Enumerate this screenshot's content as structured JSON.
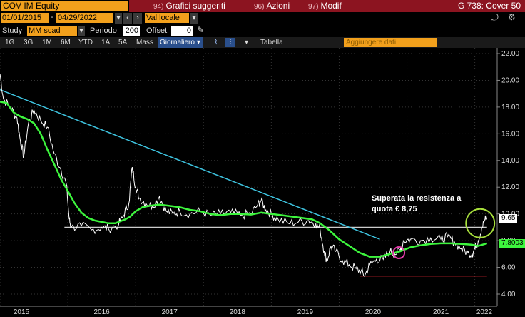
{
  "header": {
    "ticker": "COV IM Equity",
    "menus": [
      {
        "num": "94)",
        "label": "Grafici suggeriti"
      },
      {
        "num": "96)",
        "label": "Azioni"
      },
      {
        "num": "97)",
        "label": "Modif"
      }
    ],
    "right_title": "G 738: Cover 50"
  },
  "daterange": {
    "start": "01/01/2015",
    "end": "04/29/2022",
    "currency": "Val locale"
  },
  "study": {
    "label": "Study",
    "value": "MM scad",
    "period_label": "Periodo",
    "period_value": "200",
    "offset_label": "Offset",
    "offset_value": "0"
  },
  "periods": {
    "items": [
      "1G",
      "3G",
      "1M",
      "6M",
      "YTD",
      "1A",
      "5A",
      "Mass"
    ],
    "frequency": "Giornaliero",
    "table": "Tabella",
    "add_data_placeholder": "Aggiungere dati"
  },
  "chart_data": {
    "type": "line",
    "x_ticks": [
      "2015",
      "2016",
      "2017",
      "2018",
      "2019",
      "2020",
      "2021",
      "2022"
    ],
    "y_ticks": [
      "22.00",
      "20.00",
      "18.00",
      "16.00",
      "14.00",
      "12.00",
      "10.00",
      "8.00",
      "6.00",
      "4.00"
    ],
    "ylim": [
      4,
      22
    ],
    "series": [
      {
        "name": "",
        "color": "#ffffff",
        "points": [
          [
            2015.0,
            20.5
          ],
          [
            2015.05,
            18.6
          ],
          [
            2015.15,
            18.0
          ],
          [
            2015.25,
            17.2
          ],
          [
            2015.3,
            15.5
          ],
          [
            2015.35,
            14.3
          ],
          [
            2015.42,
            16.8
          ],
          [
            2015.5,
            17.8
          ],
          [
            2015.6,
            17.0
          ],
          [
            2015.7,
            16.5
          ],
          [
            2015.8,
            14.5
          ],
          [
            2015.9,
            13.3
          ],
          [
            2015.98,
            12.2
          ],
          [
            2016.02,
            9.6
          ],
          [
            2016.05,
            9.0
          ],
          [
            2016.2,
            9.1
          ],
          [
            2016.35,
            8.8
          ],
          [
            2016.5,
            9.0
          ],
          [
            2016.6,
            8.9
          ],
          [
            2016.75,
            9.2
          ],
          [
            2016.82,
            9.9
          ],
          [
            2016.9,
            10.8
          ],
          [
            2016.95,
            13.5
          ],
          [
            2017.0,
            12.0
          ],
          [
            2017.05,
            11.2
          ],
          [
            2017.15,
            10.8
          ],
          [
            2017.25,
            10.6
          ],
          [
            2017.35,
            11.3
          ],
          [
            2017.45,
            10.2
          ],
          [
            2017.55,
            10.0
          ],
          [
            2017.65,
            10.2
          ],
          [
            2017.8,
            10.0
          ],
          [
            2017.95,
            10.2
          ],
          [
            2018.1,
            9.9
          ],
          [
            2018.25,
            10.0
          ],
          [
            2018.4,
            10.1
          ],
          [
            2018.55,
            9.9
          ],
          [
            2018.7,
            10.0
          ],
          [
            2018.8,
            10.7
          ],
          [
            2018.85,
            11.0
          ],
          [
            2018.92,
            10.3
          ],
          [
            2019.0,
            10.0
          ],
          [
            2019.1,
            9.6
          ],
          [
            2019.25,
            9.3
          ],
          [
            2019.4,
            9.4
          ],
          [
            2019.55,
            9.5
          ],
          [
            2019.65,
            9.3
          ],
          [
            2019.72,
            8.8
          ],
          [
            2019.78,
            7.2
          ],
          [
            2019.82,
            6.5
          ],
          [
            2019.88,
            7.6
          ],
          [
            2019.95,
            7.2
          ],
          [
            2020.05,
            6.5
          ],
          [
            2020.15,
            6.2
          ],
          [
            2020.25,
            5.9
          ],
          [
            2020.32,
            5.7
          ],
          [
            2020.38,
            5.4
          ],
          [
            2020.45,
            6.2
          ],
          [
            2020.55,
            6.6
          ],
          [
            2020.65,
            6.6
          ],
          [
            2020.75,
            7.2
          ],
          [
            2020.82,
            7.0
          ],
          [
            2020.9,
            7.3
          ],
          [
            2020.95,
            8.0
          ],
          [
            2021.05,
            8.1
          ],
          [
            2021.2,
            8.0
          ],
          [
            2021.35,
            8.2
          ],
          [
            2021.5,
            8.1
          ],
          [
            2021.6,
            8.3
          ],
          [
            2021.7,
            7.9
          ],
          [
            2021.8,
            7.4
          ],
          [
            2021.9,
            7.1
          ],
          [
            2021.96,
            7.0
          ],
          [
            2022.0,
            7.4
          ],
          [
            2022.05,
            8.0
          ],
          [
            2022.1,
            8.9
          ],
          [
            2022.15,
            9.6
          ],
          [
            2022.18,
            9.65
          ]
        ]
      },
      {
        "name": "",
        "color": "#3df53d",
        "points": [
          [
            2015.0,
            18.4
          ],
          [
            2015.1,
            18.3
          ],
          [
            2015.2,
            17.6
          ],
          [
            2015.3,
            17.3
          ],
          [
            2015.4,
            17.1
          ],
          [
            2015.5,
            16.8
          ],
          [
            2015.6,
            16.0
          ],
          [
            2015.7,
            14.8
          ],
          [
            2015.8,
            13.7
          ],
          [
            2015.9,
            12.6
          ],
          [
            2016.0,
            11.7
          ],
          [
            2016.1,
            10.8
          ],
          [
            2016.2,
            10.1
          ],
          [
            2016.3,
            9.7
          ],
          [
            2016.4,
            9.5
          ],
          [
            2016.5,
            9.4
          ],
          [
            2016.6,
            9.3
          ],
          [
            2016.7,
            9.3
          ],
          [
            2016.75,
            9.4
          ],
          [
            2016.85,
            9.6
          ],
          [
            2016.92,
            9.8
          ],
          [
            2017.0,
            10.2
          ],
          [
            2017.1,
            10.5
          ],
          [
            2017.2,
            10.6
          ],
          [
            2017.35,
            10.7
          ],
          [
            2017.5,
            10.6
          ],
          [
            2017.65,
            10.5
          ],
          [
            2017.8,
            10.3
          ],
          [
            2017.95,
            10.2
          ],
          [
            2018.1,
            10.0
          ],
          [
            2018.25,
            9.9
          ],
          [
            2018.4,
            10.0
          ],
          [
            2018.55,
            10.0
          ],
          [
            2018.7,
            9.95
          ],
          [
            2018.85,
            10.1
          ],
          [
            2019.0,
            10.0
          ],
          [
            2019.15,
            9.9
          ],
          [
            2019.3,
            9.8
          ],
          [
            2019.45,
            9.7
          ],
          [
            2019.6,
            9.6
          ],
          [
            2019.72,
            9.3
          ],
          [
            2019.85,
            8.8
          ],
          [
            2020.0,
            8.1
          ],
          [
            2020.15,
            7.6
          ],
          [
            2020.3,
            7.1
          ],
          [
            2020.45,
            6.8
          ],
          [
            2020.6,
            6.8
          ],
          [
            2020.75,
            7.0
          ],
          [
            2020.9,
            7.2
          ],
          [
            2021.05,
            7.5
          ],
          [
            2021.2,
            7.65
          ],
          [
            2021.35,
            7.75
          ],
          [
            2021.5,
            7.8
          ],
          [
            2021.65,
            7.8
          ],
          [
            2021.8,
            7.75
          ],
          [
            2021.95,
            7.7
          ],
          [
            2022.05,
            7.6
          ],
          [
            2022.18,
            7.8
          ]
        ]
      }
    ],
    "trendline": {
      "color": "#3ec4e0",
      "from": [
        2015.0,
        19.3
      ],
      "to": [
        2020.6,
        8.1
      ]
    },
    "support_line": {
      "color": "#cccccc",
      "from": [
        2015.95,
        9.0
      ],
      "to": [
        2022.18,
        9.0
      ]
    },
    "low_line": {
      "color": "#c0202a",
      "from": [
        2020.3,
        5.35
      ],
      "to": [
        2022.18,
        5.35
      ]
    },
    "annotation": {
      "line1": "Superata la resistenza a",
      "line2": "quota € 8,75"
    },
    "last_price": {
      "value": "9.65",
      "color": "#ffffff"
    },
    "ma_value": {
      "value": "7.8003",
      "color": "#3df53d"
    },
    "highlights": [
      {
        "center": [
          2022.08,
          9.3
        ],
        "color": "#a8e03c"
      },
      {
        "center": [
          2020.88,
          7.1
        ],
        "color": "#e03ca8"
      }
    ]
  }
}
